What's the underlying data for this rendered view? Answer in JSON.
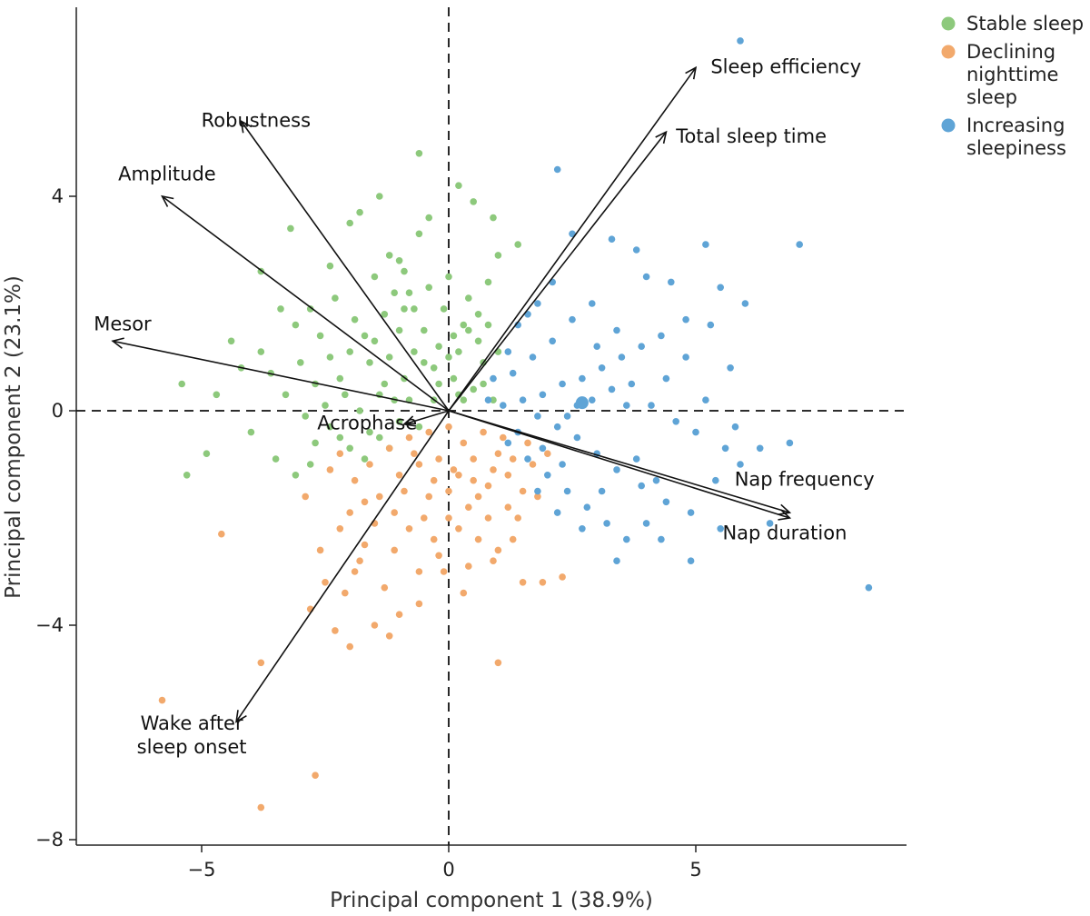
{
  "chart_data": {
    "type": "scatter",
    "title": "",
    "xlabel": "Principal component 1 (38.9%)",
    "ylabel": "Principal component 2 (23.1%)",
    "xlim": [
      -7.6,
      9.5
    ],
    "ylim": [
      -8.2,
      7.6
    ],
    "xticks": [
      {
        "value": -5,
        "label": "−5"
      },
      {
        "value": 0,
        "label": "0"
      },
      {
        "value": 5,
        "label": "5"
      }
    ],
    "yticks": [
      {
        "value": 4,
        "label": "4"
      },
      {
        "value": 0,
        "label": "0"
      },
      {
        "value": -4,
        "label": "−4"
      },
      {
        "value": -8,
        "label": "−8"
      }
    ],
    "grid": false,
    "reference_lines": {
      "x": 0,
      "y": 0,
      "style": "dashed"
    },
    "legend_position": "top-right",
    "legend": [
      {
        "color": "#8dc97c",
        "lines": [
          "Stable sleep"
        ]
      },
      {
        "color": "#f2a96c",
        "lines": [
          "Declining",
          "nighttime",
          "sleep"
        ]
      },
      {
        "color": "#5fa4d6",
        "lines": [
          "Increasing",
          "sleepiness"
        ]
      }
    ],
    "series": [
      {
        "color": "#8dc97c",
        "points": [
          [
            -1.4,
            4.0
          ],
          [
            -1.8,
            3.7
          ],
          [
            -2.0,
            3.5
          ],
          [
            -0.6,
            3.3
          ],
          [
            -1.0,
            2.8
          ],
          [
            -2.4,
            2.7
          ],
          [
            0.2,
            4.2
          ],
          [
            -0.6,
            4.8
          ],
          [
            -2.8,
            1.9
          ],
          [
            -3.1,
            1.6
          ],
          [
            -3.8,
            1.1
          ],
          [
            -4.2,
            0.8
          ],
          [
            -4.7,
            0.3
          ],
          [
            -5.4,
            0.5
          ],
          [
            -4.4,
            1.3
          ],
          [
            -3.6,
            0.7
          ],
          [
            -3.3,
            0.3
          ],
          [
            -2.9,
            -0.1
          ],
          [
            -2.7,
            -0.6
          ],
          [
            -2.4,
            -0.3
          ],
          [
            -2.2,
            0.6
          ],
          [
            -2.0,
            1.1
          ],
          [
            -1.7,
            1.4
          ],
          [
            -1.6,
            0.9
          ],
          [
            -1.4,
            0.3
          ],
          [
            -1.3,
            1.8
          ],
          [
            -1.1,
            2.2
          ],
          [
            -0.9,
            2.6
          ],
          [
            -0.7,
            1.9
          ],
          [
            -0.5,
            1.5
          ],
          [
            -0.4,
            2.3
          ],
          [
            -0.3,
            0.8
          ],
          [
            -0.2,
            1.2
          ],
          [
            -0.1,
            1.9
          ],
          [
            0.0,
            2.5
          ],
          [
            0.1,
            0.6
          ],
          [
            0.2,
            1.1
          ],
          [
            0.3,
            1.6
          ],
          [
            0.4,
            2.1
          ],
          [
            0.5,
            0.4
          ],
          [
            0.6,
            1.3
          ],
          [
            0.7,
            0.9
          ],
          [
            0.8,
            2.4
          ],
          [
            0.9,
            0.2
          ],
          [
            1.0,
            1.1
          ],
          [
            -1.8,
            0.0
          ],
          [
            -1.6,
            -0.4
          ],
          [
            -1.2,
            -0.7
          ],
          [
            -1.0,
            -0.2
          ],
          [
            -0.8,
            0.2
          ],
          [
            -0.6,
            -0.3
          ],
          [
            -2.6,
            1.4
          ],
          [
            -3.0,
            0.9
          ],
          [
            -2.5,
            0.1
          ],
          [
            -2.1,
            0.3
          ],
          [
            -1.9,
            1.7
          ],
          [
            -1.5,
            2.5
          ],
          [
            -1.2,
            1.0
          ],
          [
            -0.9,
            0.6
          ],
          [
            -0.7,
            1.1
          ],
          [
            -0.3,
            0.2
          ],
          [
            0.1,
            1.4
          ],
          [
            0.3,
            0.2
          ],
          [
            0.6,
            1.8
          ],
          [
            1.0,
            2.9
          ],
          [
            1.4,
            3.1
          ],
          [
            -4.0,
            -0.4
          ],
          [
            -4.9,
            -0.8
          ],
          [
            -5.3,
            -1.2
          ],
          [
            -3.5,
            -0.9
          ],
          [
            -3.1,
            -1.2
          ],
          [
            -2.8,
            -1.0
          ],
          [
            -3.8,
            2.6
          ],
          [
            -3.2,
            3.4
          ],
          [
            -1.2,
            2.9
          ],
          [
            -0.4,
            3.6
          ],
          [
            0.5,
            3.9
          ],
          [
            0.9,
            3.6
          ],
          [
            -2.3,
            2.1
          ],
          [
            -1.5,
            1.3
          ],
          [
            -1.3,
            0.5
          ],
          [
            -1.0,
            1.5
          ],
          [
            -0.8,
            2.2
          ],
          [
            -0.5,
            0.9
          ],
          [
            -0.2,
            0.5
          ],
          [
            0.0,
            1.0
          ],
          [
            0.2,
            0.3
          ],
          [
            0.4,
            1.5
          ],
          [
            0.7,
            0.5
          ],
          [
            0.8,
            1.6
          ],
          [
            -2.2,
            -0.5
          ],
          [
            -2.0,
            -0.7
          ],
          [
            -1.7,
            -0.9
          ],
          [
            -1.4,
            -0.5
          ],
          [
            -1.1,
            0.2
          ],
          [
            -0.9,
            1.9
          ],
          [
            -2.7,
            0.5
          ],
          [
            -2.4,
            1.0
          ],
          [
            -3.4,
            1.9
          ]
        ]
      },
      {
        "color": "#f2a96c",
        "points": [
          [
            -5.8,
            -5.4
          ],
          [
            -4.6,
            -2.3
          ],
          [
            -3.8,
            -4.7
          ],
          [
            -3.8,
            -7.4
          ],
          [
            -2.7,
            -6.8
          ],
          [
            -2.8,
            -3.7
          ],
          [
            -2.6,
            -2.6
          ],
          [
            -2.3,
            -4.1
          ],
          [
            -2.1,
            -3.4
          ],
          [
            -2.0,
            -1.9
          ],
          [
            -1.9,
            -3.0
          ],
          [
            -1.7,
            -2.5
          ],
          [
            -1.5,
            -4.0
          ],
          [
            -1.3,
            -3.3
          ],
          [
            -1.1,
            -2.6
          ],
          [
            -1.0,
            -3.8
          ],
          [
            -0.8,
            -2.2
          ],
          [
            -0.6,
            -3.0
          ],
          [
            -0.4,
            -1.6
          ],
          [
            -0.2,
            -2.7
          ],
          [
            0.0,
            -2.0
          ],
          [
            0.2,
            -1.2
          ],
          [
            0.4,
            -1.8
          ],
          [
            0.6,
            -2.4
          ],
          [
            0.8,
            -1.4
          ],
          [
            1.0,
            -0.8
          ],
          [
            1.0,
            -4.7
          ],
          [
            1.2,
            -1.2
          ],
          [
            1.4,
            -2.0
          ],
          [
            1.6,
            -0.6
          ],
          [
            1.8,
            -1.6
          ],
          [
            2.0,
            -0.8
          ],
          [
            2.3,
            -3.1
          ],
          [
            1.9,
            -3.2
          ],
          [
            -2.4,
            -1.1
          ],
          [
            -2.2,
            -0.8
          ],
          [
            -1.9,
            -1.3
          ],
          [
            -1.6,
            -1.0
          ],
          [
            -1.4,
            -1.6
          ],
          [
            -1.2,
            -0.7
          ],
          [
            -1.0,
            -1.2
          ],
          [
            -0.8,
            -0.5
          ],
          [
            -0.6,
            -1.0
          ],
          [
            -0.4,
            -0.4
          ],
          [
            -0.2,
            -0.9
          ],
          [
            0.0,
            -0.3
          ],
          [
            0.1,
            -1.1
          ],
          [
            0.3,
            -0.6
          ],
          [
            0.5,
            -0.9
          ],
          [
            0.7,
            -0.4
          ],
          [
            0.9,
            -1.1
          ],
          [
            1.1,
            -0.5
          ],
          [
            1.3,
            -0.9
          ],
          [
            1.5,
            -1.5
          ],
          [
            1.7,
            -1.0
          ],
          [
            -0.5,
            -2.0
          ],
          [
            -0.3,
            -1.3
          ],
          [
            0.0,
            -1.5
          ],
          [
            0.2,
            -2.2
          ],
          [
            0.4,
            -2.9
          ],
          [
            0.6,
            -1.6
          ],
          [
            0.8,
            -2.0
          ],
          [
            1.0,
            -2.6
          ],
          [
            -1.5,
            -2.1
          ],
          [
            -1.8,
            -2.8
          ],
          [
            -2.0,
            -4.4
          ],
          [
            -2.5,
            -3.2
          ],
          [
            -1.2,
            -4.2
          ],
          [
            -0.6,
            -3.6
          ],
          [
            -0.1,
            -3.0
          ],
          [
            0.3,
            -3.4
          ],
          [
            0.9,
            -2.8
          ],
          [
            1.3,
            -2.4
          ],
          [
            1.5,
            -3.2
          ],
          [
            -1.1,
            -1.9
          ],
          [
            -0.9,
            -1.5
          ],
          [
            -0.7,
            -0.8
          ],
          [
            -0.3,
            -2.4
          ],
          [
            0.5,
            -1.3
          ],
          [
            1.2,
            -1.8
          ],
          [
            -1.7,
            -1.7
          ],
          [
            -2.2,
            -2.2
          ],
          [
            -2.9,
            -1.6
          ]
        ]
      },
      {
        "color": "#5fa4d6",
        "points": [
          [
            5.9,
            6.9
          ],
          [
            2.2,
            4.5
          ],
          [
            2.5,
            3.3
          ],
          [
            3.3,
            3.2
          ],
          [
            3.8,
            3.0
          ],
          [
            5.2,
            3.1
          ],
          [
            7.1,
            3.1
          ],
          [
            4.0,
            2.5
          ],
          [
            4.5,
            2.4
          ],
          [
            5.5,
            2.3
          ],
          [
            6.0,
            2.0
          ],
          [
            5.3,
            1.6
          ],
          [
            4.8,
            1.7
          ],
          [
            4.3,
            1.4
          ],
          [
            3.9,
            1.2
          ],
          [
            3.5,
            1.0
          ],
          [
            3.1,
            0.8
          ],
          [
            2.7,
            0.6
          ],
          [
            2.3,
            0.5
          ],
          [
            1.9,
            0.3
          ],
          [
            1.5,
            0.2
          ],
          [
            1.1,
            0.1
          ],
          [
            1.3,
            0.7
          ],
          [
            1.7,
            1.0
          ],
          [
            2.1,
            1.3
          ],
          [
            2.5,
            1.7
          ],
          [
            2.9,
            2.0
          ],
          [
            3.4,
            1.5
          ],
          [
            3.7,
            0.5
          ],
          [
            4.1,
            0.1
          ],
          [
            4.6,
            -0.2
          ],
          [
            5.0,
            -0.4
          ],
          [
            5.6,
            -0.7
          ],
          [
            6.9,
            -0.6
          ],
          [
            5.9,
            -1.0
          ],
          [
            5.4,
            -1.3
          ],
          [
            4.9,
            -1.9
          ],
          [
            4.4,
            -1.7
          ],
          [
            3.9,
            -1.4
          ],
          [
            3.4,
            -1.1
          ],
          [
            3.0,
            -0.8
          ],
          [
            2.6,
            -0.5
          ],
          [
            2.2,
            -0.3
          ],
          [
            1.8,
            -0.1
          ],
          [
            1.4,
            -0.4
          ],
          [
            1.6,
            -0.9
          ],
          [
            2.0,
            -1.2
          ],
          [
            2.4,
            -1.5
          ],
          [
            2.8,
            -1.8
          ],
          [
            3.2,
            -2.1
          ],
          [
            3.6,
            -2.4
          ],
          [
            4.0,
            -2.1
          ],
          [
            4.3,
            -2.4
          ],
          [
            5.5,
            -2.2
          ],
          [
            6.5,
            -2.1
          ],
          [
            8.5,
            -3.3
          ],
          [
            4.9,
            -2.8
          ],
          [
            3.4,
            -2.8
          ],
          [
            2.7,
            -2.2
          ],
          [
            2.2,
            -1.9
          ],
          [
            1.8,
            -1.5
          ],
          [
            2.9,
            0.2
          ],
          [
            3.3,
            0.4
          ],
          [
            2.1,
            2.4
          ],
          [
            1.8,
            2.0
          ],
          [
            1.4,
            1.6
          ],
          [
            1.2,
            1.1
          ],
          [
            0.9,
            0.6
          ],
          [
            0.8,
            0.2
          ],
          [
            1.2,
            -0.6
          ],
          [
            1.9,
            -0.7
          ],
          [
            2.3,
            -1.0
          ],
          [
            2.7,
            0.2
          ],
          [
            3.6,
            0.1
          ],
          [
            4.4,
            0.6
          ],
          [
            4.8,
            1.0
          ],
          [
            5.7,
            0.8
          ],
          [
            5.2,
            0.2
          ],
          [
            5.8,
            -0.3
          ],
          [
            6.3,
            -0.7
          ],
          [
            2.6,
            0.1
          ],
          [
            1.6,
            1.8
          ],
          [
            2.4,
            -0.1
          ],
          [
            3.0,
            1.2
          ],
          [
            3.8,
            -0.9
          ],
          [
            4.2,
            -1.3
          ],
          [
            3.1,
            -1.5
          ]
        ]
      }
    ],
    "highlight_points": [
      {
        "x": 2.7,
        "y": 0.15,
        "color": "#5fa4d6"
      }
    ],
    "loadings": [
      {
        "label": "Robustness",
        "x": -4.2,
        "y": 5.4,
        "label_x": -3.9,
        "label_y": 5.3,
        "anchor": "middle"
      },
      {
        "label": "Amplitude",
        "x": -5.8,
        "y": 4.0,
        "label_x": -5.7,
        "label_y": 4.3,
        "anchor": "middle"
      },
      {
        "label": "Mesor",
        "x": -6.8,
        "y": 1.3,
        "label_x": -6.6,
        "label_y": 1.5,
        "anchor": "middle"
      },
      {
        "label": "Acrophase",
        "x": -0.9,
        "y": -0.25,
        "label_x": -1.65,
        "label_y": -0.35,
        "anchor": "middle"
      },
      {
        "label": "Sleep efficiency",
        "x": 5.0,
        "y": 6.4,
        "label_x": 5.3,
        "label_y": 6.3,
        "anchor": "start"
      },
      {
        "label": "Total sleep time",
        "x": 4.4,
        "y": 5.2,
        "label_x": 4.6,
        "label_y": 5.0,
        "anchor": "start"
      },
      {
        "label": "Nap frequency",
        "x": 6.9,
        "y": -1.9,
        "label_x": 7.2,
        "label_y": -1.4,
        "anchor": "middle"
      },
      {
        "label": "Nap duration",
        "x": 6.9,
        "y": -2.0,
        "label_x": 6.8,
        "label_y": -2.4,
        "anchor": "middle"
      },
      {
        "label": "Wake after sleep onset",
        "label_lines": [
          "Wake after",
          "sleep onset"
        ],
        "x": -4.3,
        "y": -5.8,
        "label_x": -5.2,
        "label_y": -5.95,
        "anchor": "middle"
      }
    ]
  }
}
